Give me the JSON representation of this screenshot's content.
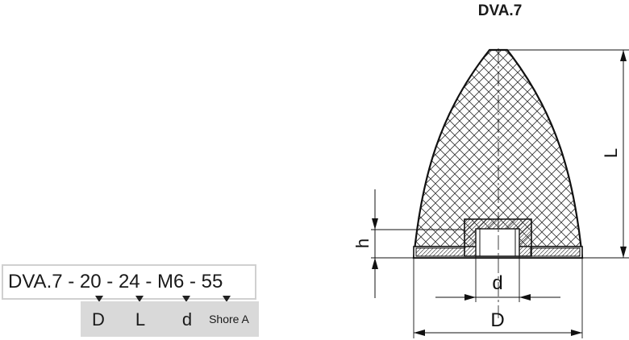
{
  "title": "DVA.7",
  "code": {
    "parts": [
      "DVA.7",
      "20",
      "24",
      "M6",
      "55"
    ],
    "separator": " - "
  },
  "legend": {
    "D": "D",
    "L": "L",
    "d": "d",
    "shore": "Shore A"
  },
  "dimensions": {
    "L": "L",
    "h": "h",
    "d": "d",
    "D": "D"
  }
}
